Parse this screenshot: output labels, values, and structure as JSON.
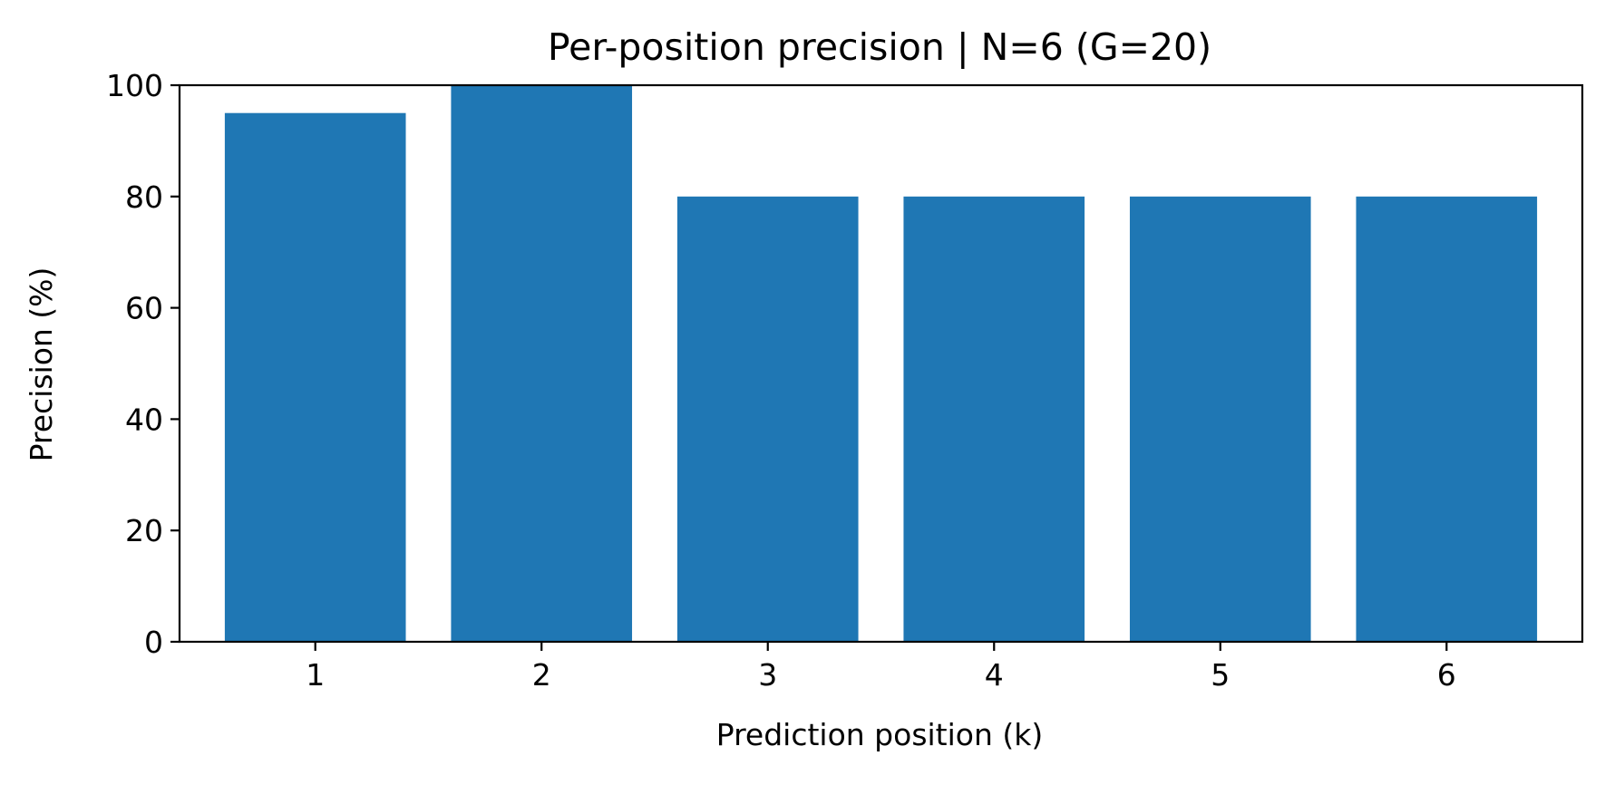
{
  "chart_data": {
    "type": "bar",
    "title": "Per-position precision | N=6 (G=20)",
    "xlabel": "Prediction position (k)",
    "ylabel": "Precision (%)",
    "categories": [
      "1",
      "2",
      "3",
      "4",
      "5",
      "6"
    ],
    "values": [
      95,
      100,
      80,
      80,
      80,
      80
    ],
    "ylim": [
      0,
      100
    ],
    "yticks": [
      "0",
      "20",
      "40",
      "60",
      "80",
      "100"
    ],
    "grid": false,
    "bar_color": "#1f77b4"
  }
}
